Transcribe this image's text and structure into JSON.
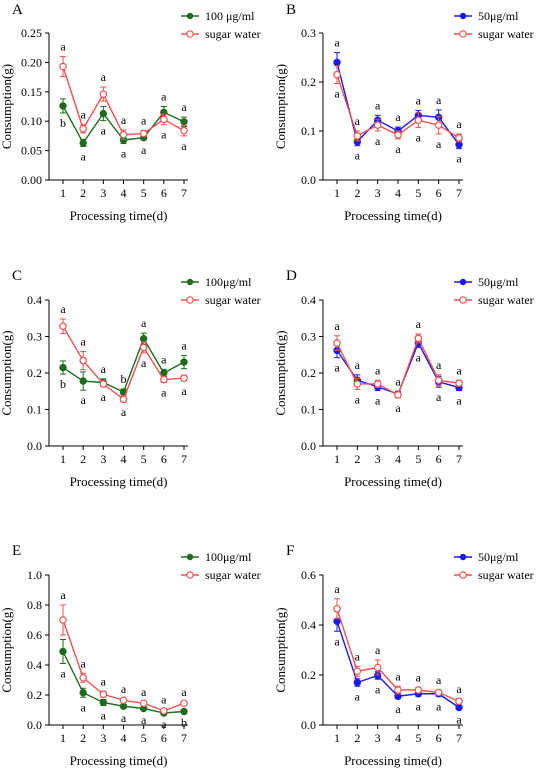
{
  "chart_data": [
    {
      "panel": "A",
      "type": "line",
      "xlabel": "Processing time(d)",
      "ylabel": "Consumption(g)",
      "x": [
        1,
        2,
        3,
        4,
        5,
        6,
        7
      ],
      "ylim": [
        0,
        0.25
      ],
      "yticks": [
        0.0,
        0.05,
        0.1,
        0.15,
        0.2,
        0.25
      ],
      "ytick_labels": [
        "0.00",
        "0.05",
        "0.10",
        "0.15",
        "0.20",
        "0.25"
      ],
      "legend_position": "top-right",
      "series": [
        {
          "name": "100 μg/ml",
          "color": "#1e6b1e",
          "marker": "filled-circle",
          "values": [
            0.126,
            0.063,
            0.113,
            0.068,
            0.072,
            0.115,
            0.099
          ],
          "errors": [
            0.012,
            0.006,
            0.012,
            0.006,
            0.004,
            0.01,
            0.008
          ],
          "letters": [
            "b",
            "a",
            "a",
            "a",
            "a",
            "a",
            "a"
          ]
        },
        {
          "name": "sugar water",
          "color": "#f05050",
          "marker": "open-circle",
          "values": [
            0.193,
            0.087,
            0.146,
            0.077,
            0.079,
            0.103,
            0.084
          ],
          "errors": [
            0.017,
            0.007,
            0.012,
            0.008,
            0.005,
            0.009,
            0.009
          ],
          "letters": [
            "a",
            "a",
            "a",
            "a",
            "a",
            "a",
            "a"
          ]
        }
      ]
    },
    {
      "panel": "B",
      "type": "line",
      "xlabel": "Processing time(d)",
      "ylabel": "Consumption(g)",
      "x": [
        1,
        2,
        3,
        4,
        5,
        6,
        7
      ],
      "ylim": [
        0,
        0.3
      ],
      "yticks": [
        0.0,
        0.1,
        0.2,
        0.3
      ],
      "ytick_labels": [
        "0.0",
        "0.1",
        "0.2",
        "0.3"
      ],
      "legend_position": "top-right",
      "series": [
        {
          "name": "50μg/ml",
          "color": "#1a1aee",
          "marker": "filled-circle",
          "values": [
            0.24,
            0.078,
            0.122,
            0.1,
            0.132,
            0.128,
            0.072
          ],
          "errors": [
            0.02,
            0.008,
            0.01,
            0.008,
            0.01,
            0.015,
            0.008
          ],
          "letters": [
            "a",
            "a",
            "a",
            "a",
            "a",
            "a",
            "a"
          ]
        },
        {
          "name": "sugar water",
          "color": "#f05050",
          "marker": "open-circle",
          "values": [
            0.215,
            0.09,
            0.112,
            0.092,
            0.122,
            0.112,
            0.086
          ],
          "errors": [
            0.018,
            0.01,
            0.012,
            0.008,
            0.015,
            0.018,
            0.008
          ],
          "letters": [
            "a",
            "a",
            "a",
            "a",
            "a",
            "a",
            "a"
          ]
        }
      ]
    },
    {
      "panel": "C",
      "type": "line",
      "xlabel": "Processing time(d)",
      "ylabel": "Consumption(g)",
      "x": [
        1,
        2,
        3,
        4,
        5,
        6,
        7
      ],
      "ylim": [
        0,
        0.4
      ],
      "yticks": [
        0.0,
        0.1,
        0.2,
        0.3,
        0.4
      ],
      "ytick_labels": [
        "0.0",
        "0.1",
        "0.2",
        "0.3",
        "0.4"
      ],
      "legend_position": "top-right",
      "series": [
        {
          "name": "100μg/ml",
          "color": "#1e6b1e",
          "marker": "filled-circle",
          "values": [
            0.215,
            0.178,
            0.174,
            0.148,
            0.294,
            0.2,
            0.23
          ],
          "errors": [
            0.018,
            0.025,
            0.01,
            0.008,
            0.015,
            0.01,
            0.018
          ],
          "letters": [
            "b",
            "a",
            "a",
            "b",
            "a",
            "a",
            "a"
          ]
        },
        {
          "name": "sugar water",
          "color": "#f05050",
          "marker": "open-circle",
          "values": [
            0.328,
            0.234,
            0.17,
            0.128,
            0.27,
            0.182,
            0.186
          ],
          "errors": [
            0.02,
            0.025,
            0.008,
            0.008,
            0.015,
            0.008,
            0.008
          ],
          "letters": [
            "a",
            "a",
            "a",
            "a",
            "a",
            "a",
            "a"
          ]
        }
      ]
    },
    {
      "panel": "D",
      "type": "line",
      "xlabel": "Processing time(d)",
      "ylabel": "Consumption(g)",
      "x": [
        1,
        2,
        3,
        4,
        5,
        6,
        7
      ],
      "ylim": [
        0,
        0.4
      ],
      "yticks": [
        0.0,
        0.1,
        0.2,
        0.3,
        0.4
      ],
      "ytick_labels": [
        "0.0",
        "0.1",
        "0.2",
        "0.3",
        "0.4"
      ],
      "legend_position": "top-right",
      "series": [
        {
          "name": "50μg/ml",
          "color": "#1a1aee",
          "marker": "filled-circle",
          "values": [
            0.262,
            0.18,
            0.162,
            0.142,
            0.282,
            0.176,
            0.16
          ],
          "errors": [
            0.02,
            0.015,
            0.01,
            0.008,
            0.012,
            0.015,
            0.008
          ],
          "letters": [
            "a",
            "a",
            "a",
            "a",
            "a",
            "a",
            "a"
          ]
        },
        {
          "name": "sugar water",
          "color": "#f05050",
          "marker": "open-circle",
          "values": [
            0.282,
            0.17,
            0.17,
            0.14,
            0.295,
            0.18,
            0.172
          ],
          "errors": [
            0.02,
            0.015,
            0.01,
            0.008,
            0.012,
            0.015,
            0.008
          ],
          "letters": [
            "a",
            "a",
            "a",
            "a",
            "a",
            "a",
            "a"
          ]
        }
      ]
    },
    {
      "panel": "E",
      "type": "line",
      "xlabel": "Processing time(d)",
      "ylabel": "Consumption(g)",
      "x": [
        1,
        2,
        3,
        4,
        5,
        6,
        7
      ],
      "ylim": [
        0,
        1.0
      ],
      "yticks": [
        0.0,
        0.2,
        0.4,
        0.6,
        0.8,
        1.0
      ],
      "ytick_labels": [
        "0.0",
        "0.2",
        "0.4",
        "0.6",
        "0.8",
        "1.0"
      ],
      "legend_position": "top-right",
      "series": [
        {
          "name": "100μg/ml",
          "color": "#1e6b1e",
          "marker": "filled-circle",
          "values": [
            0.49,
            0.215,
            0.15,
            0.125,
            0.11,
            0.08,
            0.09
          ],
          "errors": [
            0.08,
            0.03,
            0.02,
            0.01,
            0.01,
            0.008,
            0.008
          ],
          "letters": [
            "a",
            "a",
            "a",
            "a",
            "a",
            "a",
            "b"
          ]
        },
        {
          "name": "sugar water",
          "color": "#f05050",
          "marker": "open-circle",
          "values": [
            0.7,
            0.315,
            0.205,
            0.165,
            0.145,
            0.095,
            0.145
          ],
          "errors": [
            0.1,
            0.03,
            0.02,
            0.01,
            0.01,
            0.01,
            0.01
          ],
          "letters": [
            "a",
            "a",
            "a",
            "a",
            "a",
            "a",
            "a"
          ]
        }
      ]
    },
    {
      "panel": "F",
      "type": "line",
      "xlabel": "Processing time(d)",
      "ylabel": "Consumption(g)",
      "x": [
        1,
        2,
        3,
        4,
        5,
        6,
        7
      ],
      "ylim": [
        0,
        0.6
      ],
      "yticks": [
        0.0,
        0.2,
        0.4,
        0.6
      ],
      "ytick_labels": [
        "0.0",
        "0.2",
        "0.4",
        "0.6"
      ],
      "legend_position": "top-right",
      "series": [
        {
          "name": "50μg/ml",
          "color": "#1a1aee",
          "marker": "filled-circle",
          "values": [
            0.415,
            0.17,
            0.198,
            0.115,
            0.125,
            0.125,
            0.07
          ],
          "errors": [
            0.04,
            0.015,
            0.015,
            0.01,
            0.01,
            0.01,
            0.008
          ],
          "letters": [
            "a",
            "a",
            "a",
            "a",
            "a",
            "a",
            "a"
          ]
        },
        {
          "name": "sugar water",
          "color": "#f05050",
          "marker": "open-circle",
          "values": [
            0.465,
            0.215,
            0.23,
            0.14,
            0.14,
            0.13,
            0.095
          ],
          "errors": [
            0.04,
            0.02,
            0.03,
            0.015,
            0.01,
            0.01,
            0.01
          ],
          "letters": [
            "a",
            "a",
            "a",
            "a",
            "a",
            "a",
            "a"
          ]
        }
      ]
    }
  ]
}
